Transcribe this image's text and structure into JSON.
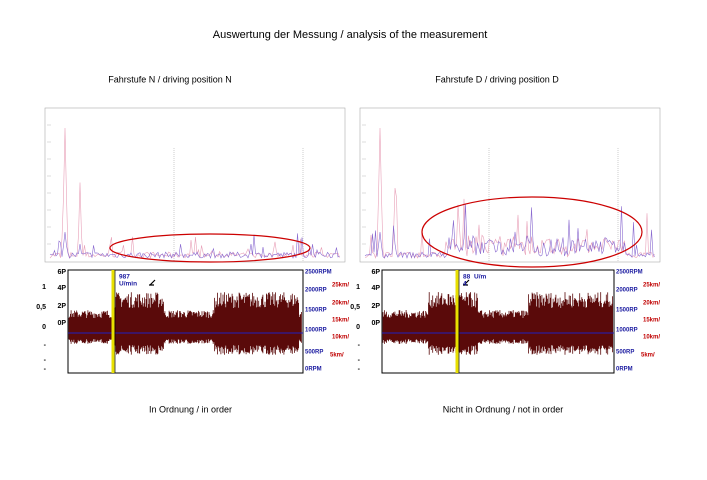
{
  "title": "Auswertung der Messung / analysis of the measurement",
  "panels": [
    {
      "heading": "Fahrstufe N / driving position N",
      "caption": "In Ordnung / in order",
      "left_outer": [
        "1",
        "0,5",
        "0",
        "-",
        "-",
        "-"
      ],
      "left_inner": [
        "6P",
        "4P",
        "2P",
        "0P"
      ],
      "rpm": [
        "2500RPM",
        "2000RP",
        "1500RP",
        "1000RP",
        "500RP",
        "0RPM"
      ],
      "speed": [
        "25km/",
        "20km/",
        "15km/",
        "10km/",
        "5km/"
      ],
      "annotation": [
        "987",
        "U/min"
      ]
    },
    {
      "heading": "Fahrstufe D / driving position D",
      "caption": "Nicht in Ordnung / not in order",
      "left_outer": [
        "1",
        "0,5",
        "0",
        "-",
        "-",
        "-"
      ],
      "left_inner": [
        "6P",
        "4P",
        "2P",
        "0P"
      ],
      "rpm": [
        "2500RPM",
        "2000RP",
        "1500RP",
        "1000RP",
        "500RP",
        "0RPM"
      ],
      "speed": [
        "25km/",
        "20km/",
        "15km/",
        "10km/",
        "5km/"
      ],
      "annotation": [
        "88",
        "U/m",
        "4"
      ]
    }
  ]
}
